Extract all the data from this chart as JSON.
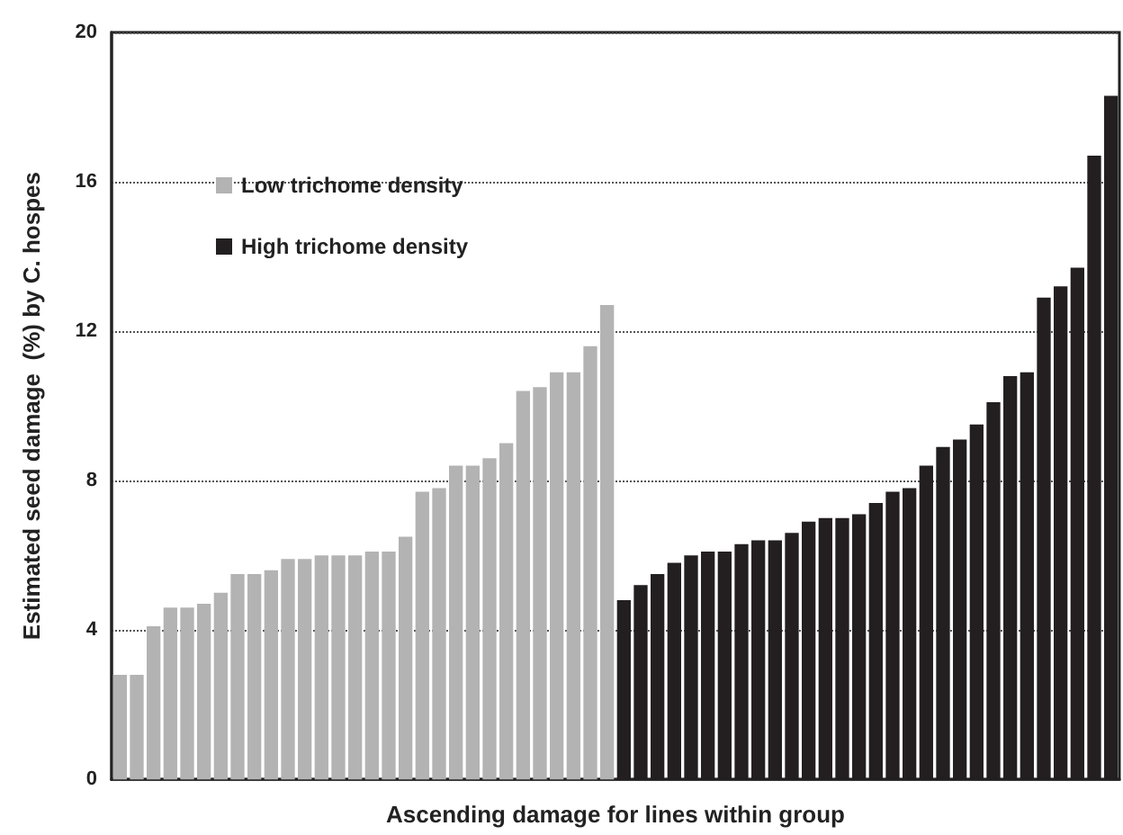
{
  "chart_data": {
    "type": "bar",
    "xlabel": "Ascending damage for lines within group",
    "ylabel": "Estimated seed damage  (%) by C. hospes",
    "categories": [
      null,
      null,
      null,
      null,
      null,
      null,
      null,
      null,
      null,
      null,
      null,
      null,
      null,
      null,
      null,
      null,
      null,
      null,
      null,
      null,
      null,
      null,
      null,
      null,
      null,
      null,
      null,
      null,
      null,
      null,
      null,
      null,
      null,
      null,
      null,
      null,
      null,
      null,
      null,
      null,
      null,
      null,
      null,
      null,
      null,
      null,
      null,
      null,
      null,
      null,
      null,
      null,
      null,
      null,
      null,
      null,
      null,
      null,
      null,
      null
    ],
    "series": [
      {
        "name": "Low trichome density",
        "color": "#b3b3b3",
        "values": [
          2.8,
          2.8,
          4.1,
          4.6,
          4.6,
          4.7,
          5.0,
          5.5,
          5.5,
          5.6,
          5.9,
          5.9,
          6.0,
          6.0,
          6.0,
          6.1,
          6.1,
          6.5,
          7.7,
          7.8,
          8.4,
          8.4,
          8.6,
          9.0,
          10.4,
          10.5,
          10.9,
          10.9,
          11.6,
          12.7,
          null,
          null,
          null,
          null,
          null,
          null,
          null,
          null,
          null,
          null,
          null,
          null,
          null,
          null,
          null,
          null,
          null,
          null,
          null,
          null,
          null,
          null,
          null,
          null,
          null,
          null,
          null,
          null,
          null,
          null
        ]
      },
      {
        "name": "High trichome density",
        "color": "#231f20",
        "values": [
          null,
          null,
          null,
          null,
          null,
          null,
          null,
          null,
          null,
          null,
          null,
          null,
          null,
          null,
          null,
          null,
          null,
          null,
          null,
          null,
          null,
          null,
          null,
          null,
          null,
          null,
          null,
          null,
          null,
          null,
          4.8,
          5.2,
          5.5,
          5.8,
          6.0,
          6.1,
          6.1,
          6.3,
          6.4,
          6.4,
          6.6,
          6.9,
          7.0,
          7.0,
          7.1,
          7.4,
          7.7,
          7.8,
          8.4,
          8.9,
          9.1,
          9.5,
          10.1,
          10.8,
          10.9,
          12.9,
          13.2,
          13.7,
          16.7,
          18.3
        ]
      }
    ],
    "ylim": [
      0,
      20
    ],
    "yticks": [
      0,
      4,
      8,
      12,
      16,
      20
    ],
    "grid": "y",
    "legend": "top left"
  }
}
